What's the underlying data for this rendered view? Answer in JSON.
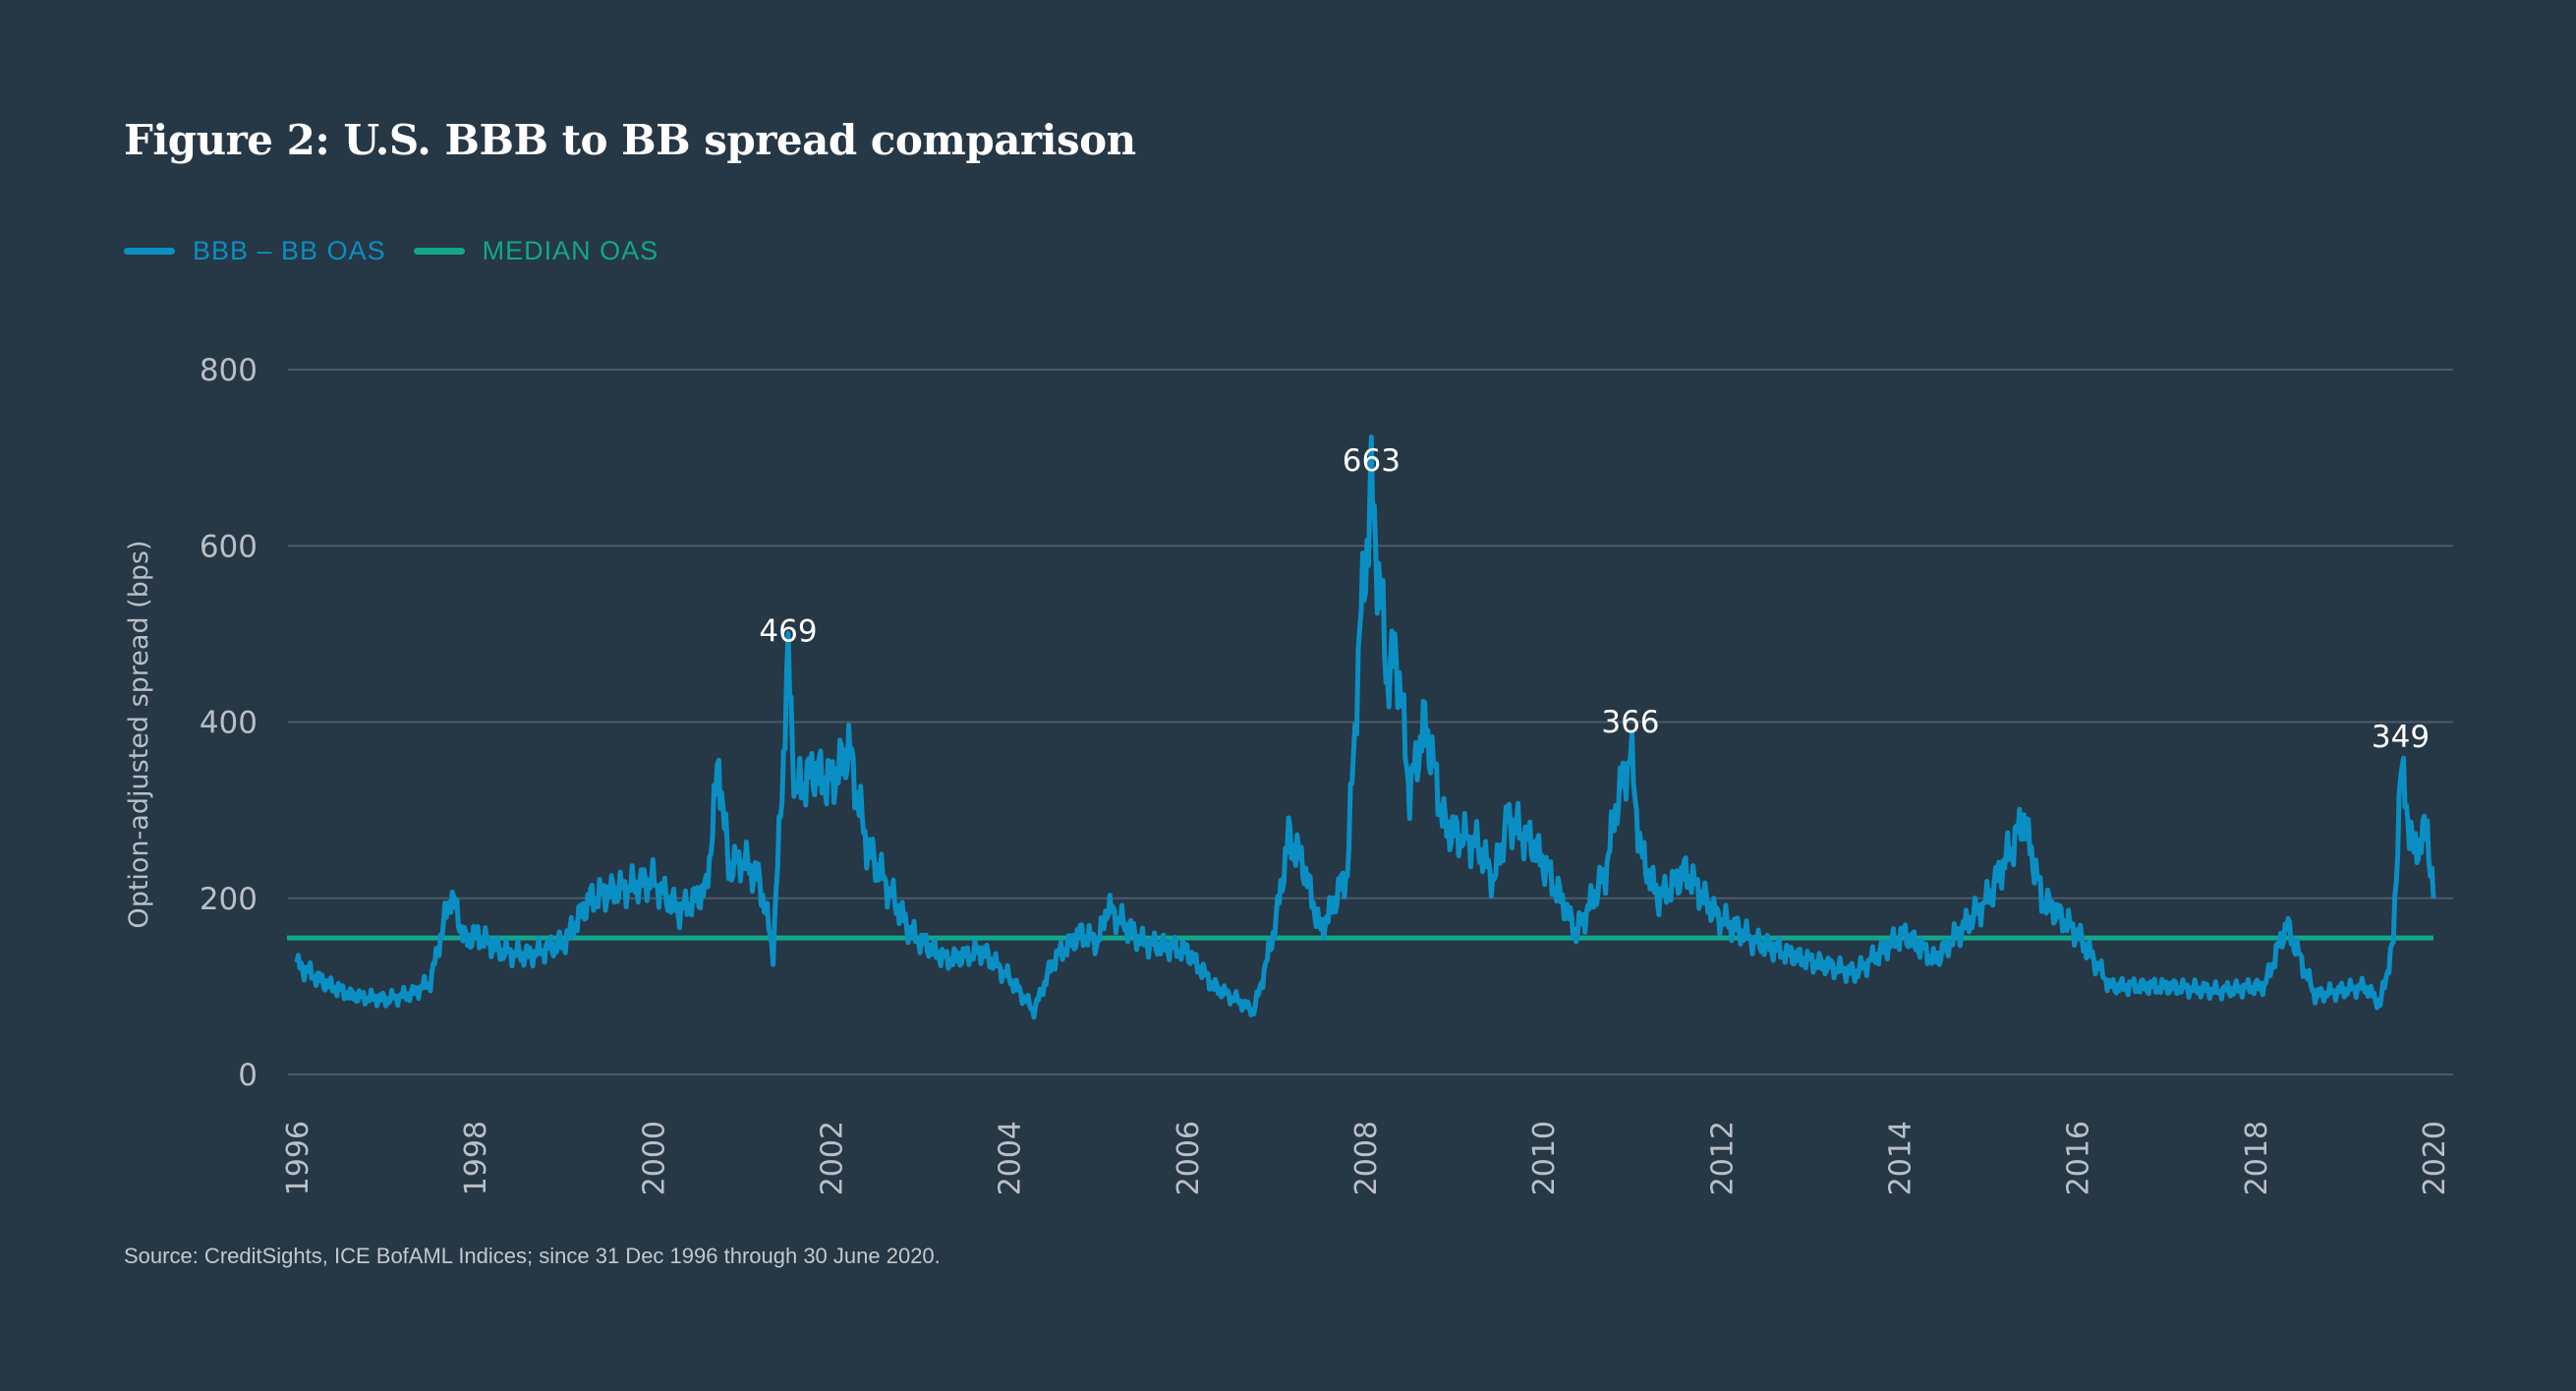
{
  "title": "Figure 2: U.S. BBB to BB spread comparison",
  "source": "Source: CreditSights, ICE BofAML Indices; since 31 Dec 1996 through 30 June 2020.",
  "colors": {
    "background": "#263746",
    "series": "#0a8fc4",
    "median": "#12a78c",
    "grid": "#4b5a68",
    "ticks": "#b9bfc5"
  },
  "chart_data": {
    "type": "line",
    "title": "Figure 2: U.S. BBB to BB spread comparison",
    "xlabel": "",
    "ylabel": "Option-adjusted spread (bps)",
    "xlim": [
      1996,
      2020
    ],
    "ylim": [
      0,
      800
    ],
    "xticks": [
      "1996",
      "1998",
      "2000",
      "2002",
      "2004",
      "2006",
      "2008",
      "2010",
      "2012",
      "2014",
      "2016",
      "2018",
      "2020"
    ],
    "yticks": [
      "0",
      "200",
      "400",
      "600",
      "800"
    ],
    "grid": "horizontal",
    "legend_placement": "top-left",
    "series": [
      {
        "name": "BBB – BB OAS",
        "color": "#0a8fc4",
        "points": [
          [
            1996.0,
            125
          ],
          [
            1996.3,
            105
          ],
          [
            1996.6,
            90
          ],
          [
            1997.0,
            85
          ],
          [
            1997.3,
            92
          ],
          [
            1997.5,
            105
          ],
          [
            1997.73,
            205
          ],
          [
            1997.9,
            150
          ],
          [
            1998.0,
            160
          ],
          [
            1998.3,
            140
          ],
          [
            1998.6,
            135
          ],
          [
            1999.0,
            150
          ],
          [
            1999.3,
            200
          ],
          [
            1999.6,
            210
          ],
          [
            2000.0,
            220
          ],
          [
            2000.3,
            185
          ],
          [
            2000.6,
            210
          ],
          [
            2000.74,
            355
          ],
          [
            2000.85,
            235
          ],
          [
            2001.0,
            245
          ],
          [
            2001.2,
            220
          ],
          [
            2001.35,
            140
          ],
          [
            2001.45,
            330
          ],
          [
            2001.52,
            469
          ],
          [
            2001.6,
            320
          ],
          [
            2001.8,
            345
          ],
          [
            2002.0,
            330
          ],
          [
            2002.2,
            370
          ],
          [
            2002.4,
            260
          ],
          [
            2002.6,
            220
          ],
          [
            2002.9,
            160
          ],
          [
            2003.3,
            130
          ],
          [
            2003.7,
            140
          ],
          [
            2004.0,
            110
          ],
          [
            2004.28,
            72
          ],
          [
            2004.5,
            130
          ],
          [
            2004.8,
            160
          ],
          [
            2005.0,
            150
          ],
          [
            2005.1,
            190
          ],
          [
            2005.5,
            150
          ],
          [
            2006.0,
            140
          ],
          [
            2006.3,
            100
          ],
          [
            2006.6,
            82
          ],
          [
            2006.75,
            72
          ],
          [
            2006.9,
            130
          ],
          [
            2007.0,
            175
          ],
          [
            2007.14,
            270
          ],
          [
            2007.3,
            240
          ],
          [
            2007.5,
            162
          ],
          [
            2007.8,
            230
          ],
          [
            2007.94,
            500
          ],
          [
            2008.07,
            663
          ],
          [
            2008.25,
            450
          ],
          [
            2008.35,
            480
          ],
          [
            2008.5,
            320
          ],
          [
            2008.67,
            400
          ],
          [
            2008.9,
            280
          ],
          [
            2009.27,
            260
          ],
          [
            2009.45,
            220
          ],
          [
            2009.6,
            290
          ],
          [
            2009.9,
            260
          ],
          [
            2010.2,
            200
          ],
          [
            2010.37,
            160
          ],
          [
            2010.7,
            230
          ],
          [
            2010.83,
            310
          ],
          [
            2010.98,
            366
          ],
          [
            2011.1,
            250
          ],
          [
            2011.3,
            200
          ],
          [
            2011.6,
            230
          ],
          [
            2011.95,
            180
          ],
          [
            2012.4,
            150
          ],
          [
            2012.95,
            130
          ],
          [
            2013.5,
            115
          ],
          [
            2014.05,
            160
          ],
          [
            2014.4,
            130
          ],
          [
            2015.0,
            200
          ],
          [
            2015.4,
            290
          ],
          [
            2015.6,
            200
          ],
          [
            2016.0,
            160
          ],
          [
            2016.37,
            100
          ],
          [
            2017.0,
            100
          ],
          [
            2017.57,
            95
          ],
          [
            2018.1,
            100
          ],
          [
            2018.35,
            170
          ],
          [
            2018.67,
            90
          ],
          [
            2019.23,
            100
          ],
          [
            2019.4,
            80
          ],
          [
            2019.55,
            150
          ],
          [
            2019.63,
            349
          ],
          [
            2019.78,
            250
          ],
          [
            2019.93,
            280
          ],
          [
            2020.0,
            200
          ]
        ]
      },
      {
        "name": "MEDIAN OAS",
        "color": "#12a78c",
        "constant": 155
      }
    ],
    "annotations": [
      {
        "text": "469",
        "x": 2001.52,
        "y": 469
      },
      {
        "text": "663",
        "x": 2008.07,
        "y": 663
      },
      {
        "text": "366",
        "x": 2010.98,
        "y": 366
      },
      {
        "text": "349",
        "x": 2019.63,
        "y": 349
      }
    ]
  }
}
